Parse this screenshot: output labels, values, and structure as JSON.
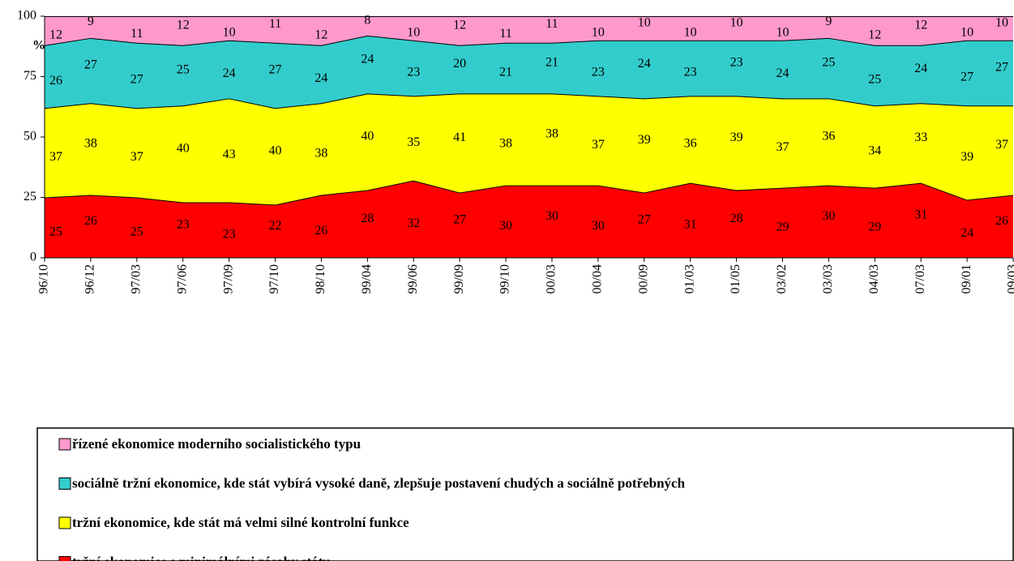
{
  "chart_data": {
    "type": "stacked_area",
    "y_unit": "%",
    "categories": [
      "96/10",
      "96/12",
      "97/03",
      "97/06",
      "97/09",
      "97/10",
      "98/10",
      "99/04",
      "99/06",
      "99/09",
      "99/10",
      "00/03",
      "00/04",
      "00/09",
      "01/03",
      "01/05",
      "03/02",
      "03/03",
      "04/03",
      "07/03",
      "09/01",
      "09/03"
    ],
    "series": [
      {
        "name": "řízené ekonomice moderního socialistického typu",
        "color": "#ff99cc",
        "values": [
          12,
          9,
          11,
          12,
          10,
          11,
          12,
          8,
          10,
          12,
          11,
          11,
          10,
          10,
          10,
          10,
          10,
          9,
          12,
          12,
          10,
          10
        ]
      },
      {
        "name": "sociálně tržní ekonomice, kde stát vybírá vysoké daně, zlepšuje postavení chudých a sociálně potřebných",
        "color": "#33cccc",
        "values": [
          26,
          27,
          27,
          25,
          24,
          27,
          24,
          24,
          23,
          20,
          21,
          21,
          23,
          24,
          23,
          23,
          24,
          25,
          25,
          24,
          27,
          27
        ]
      },
      {
        "name": "tržní ekonomice, kde stát má velmi silné kontrolní funkce",
        "color": "#ffff00",
        "values": [
          37,
          38,
          37,
          40,
          43,
          40,
          38,
          40,
          35,
          41,
          38,
          38,
          37,
          39,
          36,
          39,
          37,
          36,
          34,
          33,
          39,
          37
        ]
      },
      {
        "name": "tržní ekonomice s minimálními zásahy státu",
        "color": "#ff0000",
        "values": [
          25,
          26,
          25,
          23,
          23,
          22,
          26,
          28,
          32,
          27,
          30,
          30,
          30,
          27,
          31,
          28,
          29,
          30,
          29,
          31,
          24,
          26
        ]
      }
    ],
    "ylim": [
      0,
      100
    ],
    "yticks": [
      0,
      25,
      50,
      75,
      100
    ]
  }
}
